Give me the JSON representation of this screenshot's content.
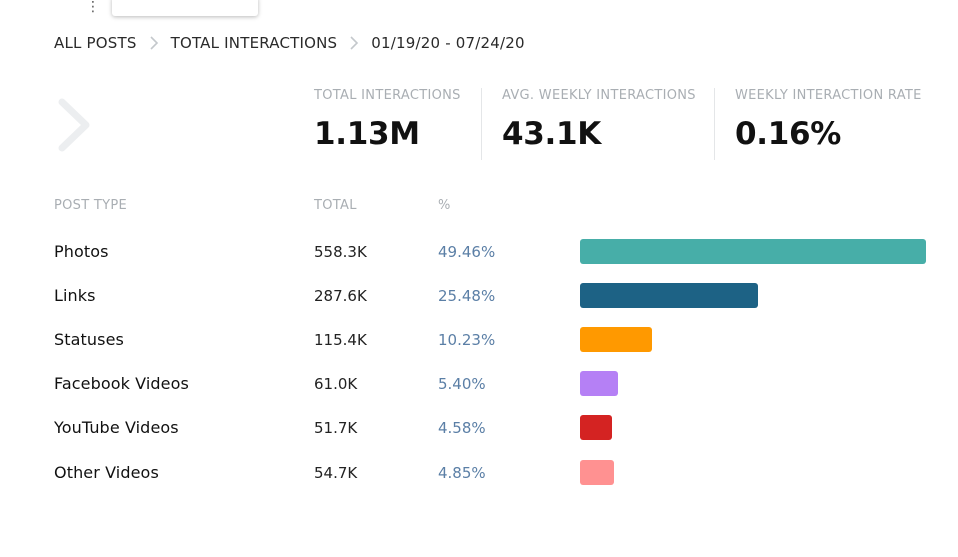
{
  "header": {
    "menu_icon": "vertical-ellipsis-icon"
  },
  "breadcrumb": {
    "items": [
      "ALL POSTS",
      "TOTAL INTERACTIONS"
    ],
    "date_range": "01/19/20 - 07/24/20"
  },
  "kpis": [
    {
      "label": "TOTAL INTERACTIONS",
      "value": "1.13M"
    },
    {
      "label": "AVG. WEEKLY INTERACTIONS",
      "value": "43.1K"
    },
    {
      "label": "WEEKLY INTERACTION RATE",
      "value": "0.16%"
    }
  ],
  "table": {
    "headers": {
      "type": "POST TYPE",
      "total": "TOTAL",
      "pct": "%"
    },
    "rows": [
      {
        "type": "Photos",
        "total": "558.3K",
        "pct": "49.46%",
        "share": 49.46,
        "color": "#47aea8"
      },
      {
        "type": "Links",
        "total": "287.6K",
        "pct": "25.48%",
        "share": 25.48,
        "color": "#1d6285"
      },
      {
        "type": "Statuses",
        "total": "115.4K",
        "pct": "10.23%",
        "share": 10.23,
        "color": "#ff9900"
      },
      {
        "type": "Facebook Videos",
        "total": "61.0K",
        "pct": "5.40%",
        "share": 5.4,
        "color": "#b580f5"
      },
      {
        "type": "YouTube Videos",
        "total": "51.7K",
        "pct": "4.58%",
        "share": 4.58,
        "color": "#d42322"
      },
      {
        "type": "Other Videos",
        "total": "54.7K",
        "pct": "4.85%",
        "share": 4.85,
        "color": "#ff9191"
      }
    ]
  }
}
